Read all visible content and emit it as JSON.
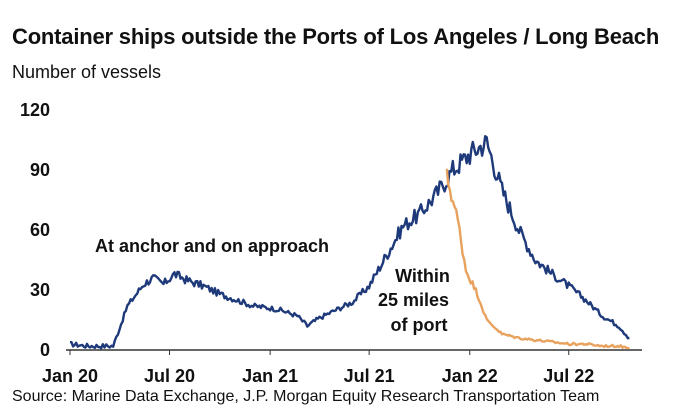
{
  "chart_data": {
    "type": "line",
    "title": "Container ships outside the Ports of Los Angeles / Long Beach",
    "ylabel": "Number of vessels",
    "source": "Source: Marine Data Exchange, J.P. Morgan Equity Research Transportation Team",
    "ylim": [
      0,
      120
    ],
    "yticks": [
      "0",
      "30",
      "60",
      "90",
      "120"
    ],
    "xlim": [
      "2020-01-01",
      "2022-11-01"
    ],
    "xticks": [
      {
        "label": "Jan 20",
        "date": "2020-01-01"
      },
      {
        "label": "Jul 20",
        "date": "2020-07-01"
      },
      {
        "label": "Jan 21",
        "date": "2021-01-01"
      },
      {
        "label": "Jul 21",
        "date": "2021-07-01"
      },
      {
        "label": "Jan 22",
        "date": "2022-01-01"
      },
      {
        "label": "Jul 22",
        "date": "2022-07-01"
      }
    ],
    "grid": false,
    "series": [
      {
        "name": "At anchor and on approach",
        "color": "#1f3a7a",
        "points": [
          [
            "2020-01-01",
            3
          ],
          [
            "2020-02-01",
            2
          ],
          [
            "2020-03-01",
            2
          ],
          [
            "2020-03-20",
            2
          ],
          [
            "2020-04-15",
            22
          ],
          [
            "2020-05-15",
            33
          ],
          [
            "2020-06-01",
            36
          ],
          [
            "2020-06-20",
            33
          ],
          [
            "2020-07-10",
            38
          ],
          [
            "2020-08-01",
            35
          ],
          [
            "2020-09-01",
            32
          ],
          [
            "2020-10-01",
            28
          ],
          [
            "2020-11-01",
            25
          ],
          [
            "2020-12-01",
            22
          ],
          [
            "2021-01-01",
            21
          ],
          [
            "2021-01-20",
            20
          ],
          [
            "2021-02-20",
            17
          ],
          [
            "2021-03-10",
            12
          ],
          [
            "2021-04-01",
            16
          ],
          [
            "2021-05-01",
            20
          ],
          [
            "2021-06-01",
            24
          ],
          [
            "2021-07-01",
            32
          ],
          [
            "2021-08-01",
            47
          ],
          [
            "2021-09-01",
            62
          ],
          [
            "2021-10-01",
            68
          ],
          [
            "2021-11-01",
            78
          ],
          [
            "2021-12-01",
            90
          ],
          [
            "2022-01-01",
            98
          ],
          [
            "2022-02-01",
            104
          ],
          [
            "2022-03-01",
            80
          ],
          [
            "2022-04-01",
            60
          ],
          [
            "2022-05-01",
            45
          ],
          [
            "2022-06-01",
            38
          ],
          [
            "2022-07-01",
            32
          ],
          [
            "2022-08-01",
            25
          ],
          [
            "2022-09-01",
            17
          ],
          [
            "2022-10-01",
            12
          ],
          [
            "2022-10-20",
            6
          ]
        ]
      },
      {
        "name": "Within 25 miles of port",
        "color": "#e8a25d",
        "points": [
          [
            "2021-11-20",
            87
          ],
          [
            "2021-12-10",
            65
          ],
          [
            "2021-12-25",
            40
          ],
          [
            "2022-01-15",
            28
          ],
          [
            "2022-02-01",
            15
          ],
          [
            "2022-03-01",
            8
          ],
          [
            "2022-04-01",
            6
          ],
          [
            "2022-05-01",
            5
          ],
          [
            "2022-06-01",
            4
          ],
          [
            "2022-07-01",
            3
          ],
          [
            "2022-08-01",
            3
          ],
          [
            "2022-09-01",
            2
          ],
          [
            "2022-10-01",
            2
          ],
          [
            "2022-10-20",
            1
          ]
        ]
      }
    ],
    "annotations": [
      {
        "series": 0,
        "lines": [
          "At anchor and on approach"
        ]
      },
      {
        "series": 1,
        "lines": [
          "Within",
          "25 miles",
          "of port"
        ]
      }
    ]
  }
}
